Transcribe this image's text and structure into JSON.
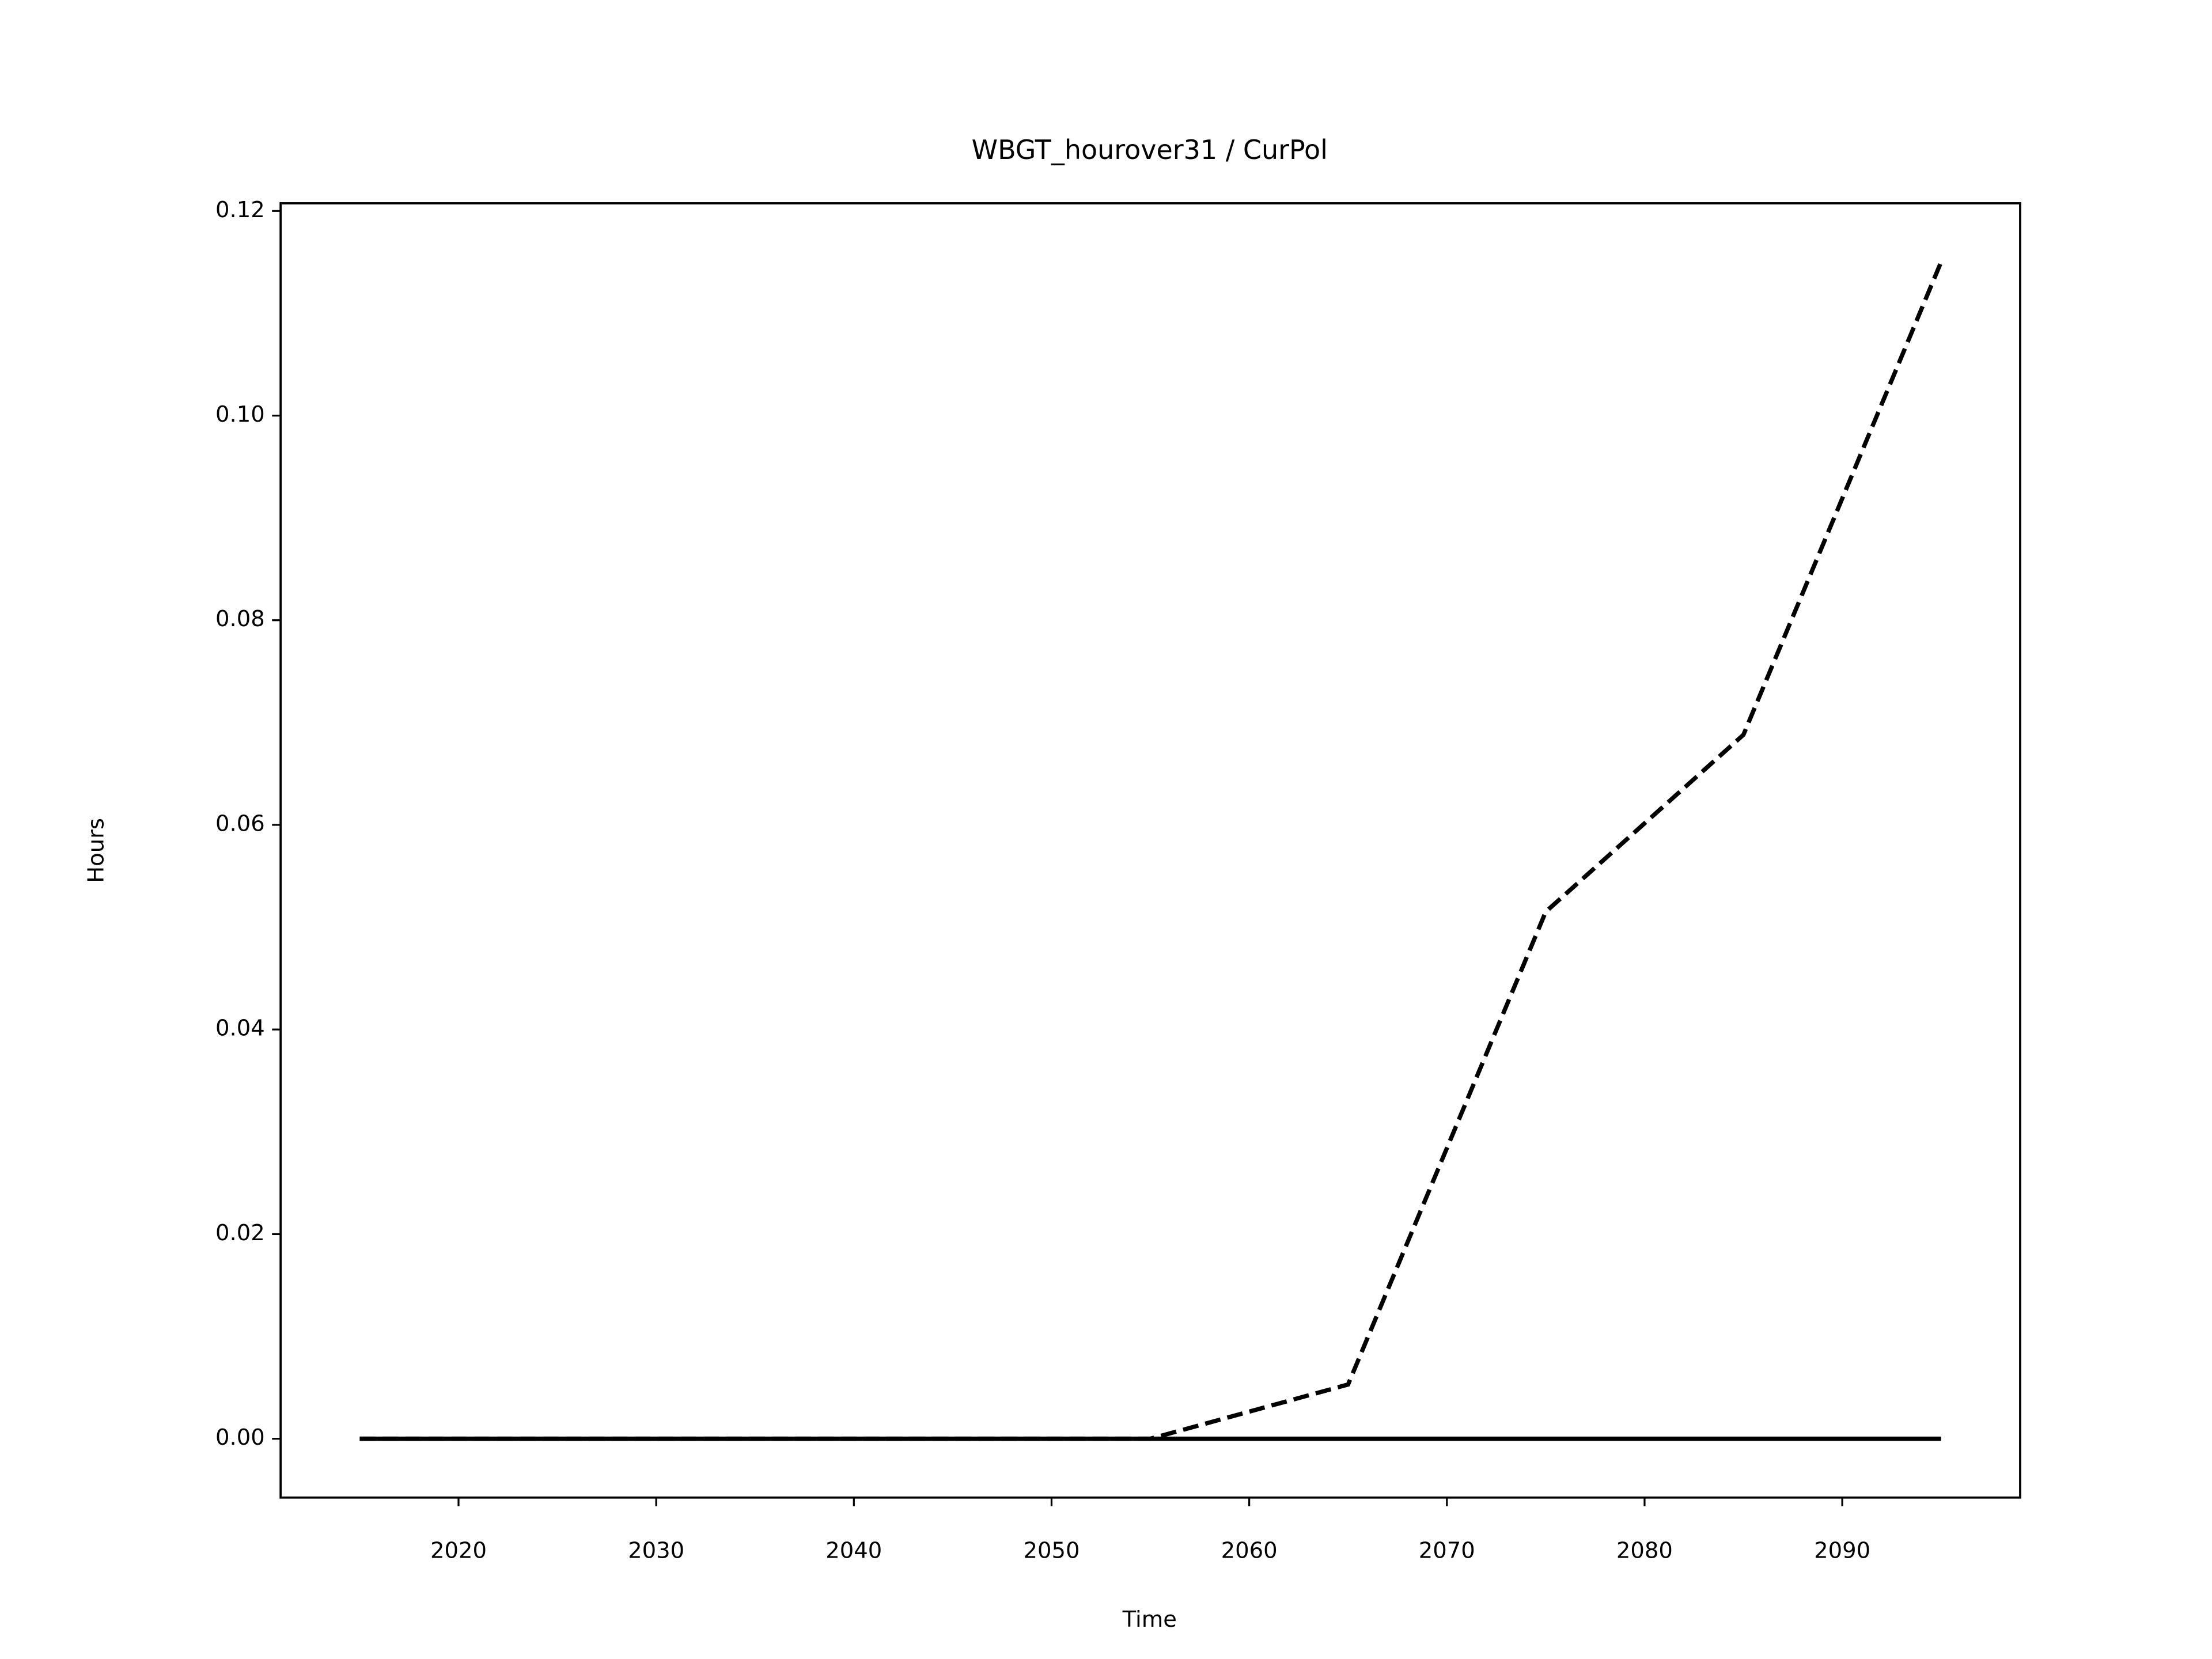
{
  "chart_data": {
    "type": "line",
    "title": "WBGT_hourover31 / CurPol",
    "x_label": "Time",
    "y_label": "Hours",
    "x": [
      2015,
      2025,
      2035,
      2045,
      2055,
      2065,
      2075,
      2085,
      2095
    ],
    "series": [
      {
        "color": "#000000",
        "dash": true,
        "values": [
          0,
          0,
          0,
          0,
          0,
          0.0053,
          0.0515,
          0.0688,
          0.115
        ]
      },
      {
        "color": "#000000",
        "dash": false,
        "values": [
          0,
          0,
          0,
          0,
          0,
          0,
          0,
          0,
          0
        ]
      }
    ],
    "xlim": [
      2011,
      2099
    ],
    "xticks": [
      2020,
      2030,
      2040,
      2050,
      2060,
      2070,
      2080,
      2090
    ],
    "ylim": [
      -0.00575,
      0.12075
    ],
    "yticks": [
      {
        "value": 0,
        "label": "0.00"
      },
      {
        "value": 0.02,
        "label": "0.02"
      },
      {
        "value": 0.04,
        "label": "0.04"
      },
      {
        "value": 0.06,
        "label": "0.06"
      },
      {
        "value": 0.08,
        "label": "0.08"
      },
      {
        "value": 0.1,
        "label": "0.10"
      },
      {
        "value": 0.12,
        "label": "0.12"
      }
    ],
    "grid": false
  }
}
